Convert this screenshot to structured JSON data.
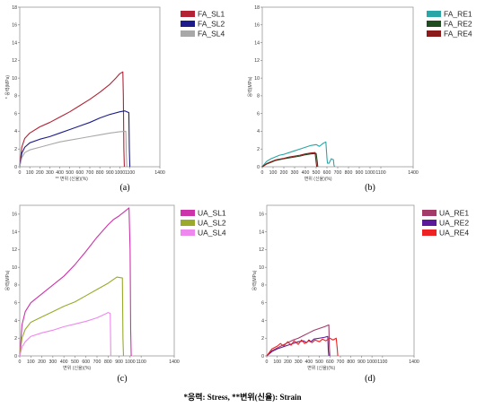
{
  "caption": "*응력: Stress, **변위(신율): Strain",
  "chart_data": [
    {
      "type": "line",
      "panel_label": "(a)",
      "xlabel": "** 변위 (신율)(%)",
      "ylabel": "* 응력(MPa)",
      "xlim": [
        0,
        1400
      ],
      "ylim": [
        0,
        18
      ],
      "xticks": [
        0,
        100,
        200,
        300,
        400,
        500,
        600,
        700,
        800,
        900,
        1000,
        1100,
        1400
      ],
      "yticks": [
        0,
        2,
        4,
        6,
        8,
        10,
        12,
        14,
        16,
        18
      ],
      "xtick_labels": [
        "0",
        "100",
        "200",
        "300",
        "400",
        "500",
        "600",
        "700",
        "800",
        "900",
        "1000",
        "1100",
        "1400"
      ],
      "ytick_labels": [
        "0",
        "2",
        "4",
        "6",
        "8",
        "10",
        "12",
        "14",
        "16",
        "18"
      ],
      "legend_position": "top-right",
      "series": [
        {
          "name": "FA_SL1",
          "color": "#b22234",
          "x": [
            0,
            20,
            50,
            100,
            200,
            300,
            400,
            500,
            600,
            700,
            800,
            900,
            960,
            1000,
            1030,
            1035,
            1040,
            1045
          ],
          "y": [
            0,
            2.2,
            3.2,
            3.8,
            4.5,
            5.0,
            5.6,
            6.2,
            6.9,
            7.6,
            8.4,
            9.3,
            10.0,
            10.5,
            10.7,
            8.0,
            2.0,
            0
          ]
        },
        {
          "name": "FA_SL2",
          "color": "#1c1c8c",
          "x": [
            0,
            20,
            50,
            100,
            200,
            300,
            400,
            500,
            600,
            700,
            800,
            900,
            1000,
            1050,
            1090,
            1095,
            1100
          ],
          "y": [
            0,
            1.5,
            2.2,
            2.7,
            3.1,
            3.4,
            3.8,
            4.2,
            4.6,
            5.0,
            5.5,
            5.9,
            6.2,
            6.3,
            6.1,
            2.0,
            0
          ]
        },
        {
          "name": "FA_SL4",
          "color": "#a8a8a8",
          "x": [
            0,
            20,
            50,
            100,
            200,
            300,
            400,
            500,
            600,
            700,
            800,
            900,
            1000,
            1060,
            1065,
            1070
          ],
          "y": [
            0,
            1.0,
            1.6,
            1.9,
            2.2,
            2.5,
            2.8,
            3.0,
            3.2,
            3.4,
            3.6,
            3.8,
            3.95,
            4.0,
            1.5,
            0
          ]
        }
      ]
    },
    {
      "type": "line",
      "panel_label": "(b)",
      "xlabel": "변위 (신율)(%)",
      "ylabel": "응력(MPa)",
      "xlim": [
        0,
        1400
      ],
      "ylim": [
        0,
        18
      ],
      "xticks": [
        0,
        100,
        200,
        300,
        400,
        500,
        600,
        700,
        800,
        900,
        1000,
        1100,
        1400
      ],
      "yticks": [
        0,
        2,
        4,
        6,
        8,
        10,
        12,
        14,
        16,
        18
      ],
      "xtick_labels": [
        "0",
        "100",
        "200",
        "300",
        "400",
        "500",
        "600",
        "700",
        "800",
        "900",
        "1000",
        "1100",
        "1400"
      ],
      "ytick_labels": [
        "0",
        "2",
        "4",
        "6",
        "8",
        "10",
        "12",
        "14",
        "16",
        "18"
      ],
      "legend_position": "top-right",
      "series": [
        {
          "name": "FA_RE1",
          "color": "#2aa6a6",
          "x": [
            0,
            40,
            80,
            120,
            160,
            200,
            250,
            300,
            350,
            400,
            450,
            500,
            530,
            560,
            590,
            600,
            605,
            620,
            640,
            660,
            665,
            670
          ],
          "y": [
            0,
            0.6,
            0.9,
            1.1,
            1.3,
            1.4,
            1.6,
            1.8,
            2.0,
            2.2,
            2.4,
            2.5,
            2.3,
            2.6,
            2.8,
            1.0,
            0.4,
            0.4,
            0.9,
            0.8,
            0.2,
            0
          ]
        },
        {
          "name": "FA_RE2",
          "color": "#1f4d1f",
          "x": [
            0,
            40,
            80,
            120,
            160,
            200,
            250,
            300,
            350,
            400,
            450,
            500,
            510,
            515
          ],
          "y": [
            0,
            0.3,
            0.5,
            0.7,
            0.8,
            0.9,
            1.0,
            1.1,
            1.2,
            1.35,
            1.45,
            1.5,
            0.6,
            0
          ]
        },
        {
          "name": "FA_RE4",
          "color": "#8b1a1a",
          "x": [
            0,
            40,
            80,
            120,
            160,
            200,
            250,
            300,
            350,
            400,
            450,
            490,
            500,
            505
          ],
          "y": [
            0,
            0.35,
            0.55,
            0.75,
            0.85,
            0.95,
            1.1,
            1.2,
            1.3,
            1.45,
            1.55,
            1.6,
            0.5,
            0
          ]
        }
      ]
    },
    {
      "type": "line",
      "panel_label": "(c)",
      "xlabel": "변위 (신율)(%)",
      "ylabel": "응력(MPa)",
      "xlim": [
        0,
        1400
      ],
      "ylim": [
        0,
        17
      ],
      "xticks": [
        0,
        100,
        200,
        300,
        400,
        500,
        600,
        700,
        800,
        900,
        1000,
        1100,
        1400
      ],
      "yticks": [
        0,
        2,
        4,
        6,
        8,
        10,
        12,
        14,
        16
      ],
      "xtick_labels": [
        "0",
        "100",
        "200",
        "300",
        "400",
        "500",
        "600",
        "700",
        "800",
        "900",
        "1000",
        "1100",
        "1400"
      ],
      "ytick_labels": [
        "0",
        "2",
        "4",
        "6",
        "8",
        "10",
        "12",
        "14",
        "16"
      ],
      "legend_position": "top-right",
      "series": [
        {
          "name": "UA_SL1",
          "color": "#cc33aa",
          "x": [
            0,
            20,
            50,
            100,
            200,
            300,
            400,
            500,
            600,
            700,
            800,
            850,
            900,
            950,
            990,
            1000,
            1005,
            1010
          ],
          "y": [
            0,
            3.5,
            5.0,
            6.0,
            7.0,
            8.0,
            9.0,
            10.3,
            11.8,
            13.4,
            14.8,
            15.4,
            15.8,
            16.3,
            16.7,
            12.0,
            3.0,
            0
          ]
        },
        {
          "name": "UA_SL2",
          "color": "#9aaa2a",
          "x": [
            0,
            20,
            50,
            100,
            200,
            300,
            400,
            500,
            600,
            700,
            800,
            880,
            930,
            935,
            940
          ],
          "y": [
            0,
            2.0,
            3.0,
            3.8,
            4.4,
            5.0,
            5.6,
            6.1,
            6.8,
            7.5,
            8.2,
            8.9,
            8.8,
            2.0,
            0
          ]
        },
        {
          "name": "UA_SL4",
          "color": "#ee88ee",
          "x": [
            0,
            20,
            50,
            100,
            200,
            300,
            400,
            500,
            600,
            700,
            770,
            800,
            820,
            825
          ],
          "y": [
            0,
            1.0,
            1.6,
            2.2,
            2.6,
            2.9,
            3.3,
            3.6,
            3.9,
            4.3,
            4.7,
            4.9,
            4.8,
            0
          ]
        }
      ]
    },
    {
      "type": "line",
      "panel_label": "(d)",
      "xlabel": "변위 (신율)(%)",
      "ylabel": "응력(MPa)",
      "xlim": [
        0,
        1400
      ],
      "ylim": [
        0,
        17
      ],
      "xticks": [
        0,
        100,
        200,
        300,
        400,
        500,
        600,
        700,
        800,
        900,
        1000,
        1100,
        1400
      ],
      "yticks": [
        0,
        2,
        4,
        6,
        8,
        10,
        12,
        14,
        16
      ],
      "xtick_labels": [
        "0",
        "100",
        "200",
        "300",
        "400",
        "500",
        "600",
        "700",
        "800",
        "900",
        "1000",
        "1100",
        "1400"
      ],
      "ytick_labels": [
        "0",
        "2",
        "4",
        "6",
        "8",
        "10",
        "12",
        "14",
        "16"
      ],
      "legend_position": "top-right",
      "series": [
        {
          "name": "UA_RE1",
          "color": "#a23a6a",
          "x": [
            0,
            50,
            100,
            150,
            200,
            250,
            300,
            350,
            400,
            450,
            500,
            550,
            590,
            595,
            600
          ],
          "y": [
            0,
            0.6,
            0.9,
            1.2,
            1.5,
            1.8,
            2.0,
            2.3,
            2.6,
            2.9,
            3.1,
            3.3,
            3.5,
            1.0,
            0
          ]
        },
        {
          "name": "UA_RE2",
          "color": "#5a1a9a",
          "x": [
            0,
            50,
            100,
            150,
            200,
            250,
            300,
            350,
            380,
            400,
            420,
            450,
            500,
            550,
            580,
            585,
            590
          ],
          "y": [
            0,
            0.5,
            0.8,
            1.0,
            1.2,
            1.4,
            1.6,
            1.7,
            1.5,
            1.8,
            1.6,
            1.9,
            2.0,
            2.1,
            2.2,
            0.6,
            0
          ]
        },
        {
          "name": "UA_RE4",
          "color": "#ee2222",
          "x": [
            0,
            50,
            100,
            130,
            160,
            200,
            230,
            260,
            300,
            330,
            360,
            400,
            430,
            460,
            500,
            530,
            560,
            600,
            630,
            660,
            670,
            675
          ],
          "y": [
            0,
            0.8,
            1.1,
            1.4,
            1.1,
            1.6,
            1.2,
            1.7,
            1.3,
            1.8,
            1.4,
            1.7,
            1.5,
            1.8,
            1.6,
            1.9,
            1.7,
            2.0,
            1.8,
            2.0,
            0.8,
            0
          ]
        }
      ]
    }
  ]
}
